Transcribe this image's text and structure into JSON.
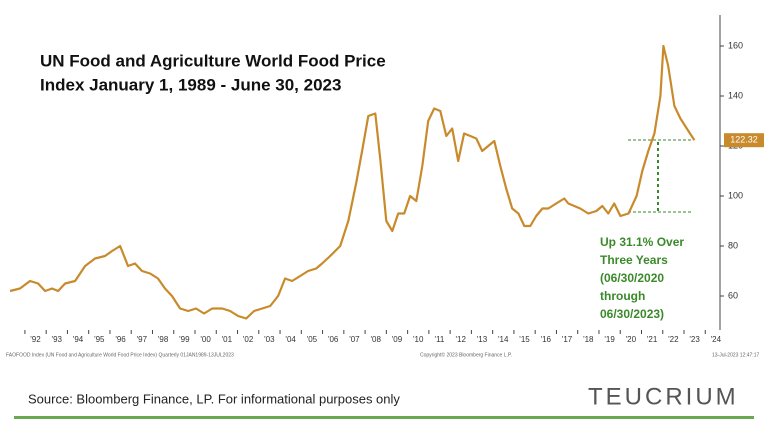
{
  "chart_data": {
    "type": "line",
    "title": [
      "UN Food and Agriculture World Food Price",
      "Index January 1, 1989 - June 30, 2023"
    ],
    "x": [
      1991.3,
      1991.77,
      1992.24,
      1992.62,
      1992.95,
      1993.28,
      1993.56,
      1993.89,
      1994.36,
      1994.83,
      1995.3,
      1995.77,
      1996.1,
      1996.48,
      1996.85,
      1997.18,
      1997.51,
      1997.89,
      1998.26,
      1998.59,
      1998.92,
      1999.3,
      1999.68,
      2000.05,
      2000.43,
      2000.81,
      2001.28,
      2001.65,
      2002.03,
      2002.41,
      2002.78,
      2003.16,
      2003.54,
      2003.91,
      2004.24,
      2004.57,
      2004.95,
      2005.32,
      2005.7,
      2005.98,
      2006.36,
      2006.83,
      2007.21,
      2007.58,
      2007.86,
      2008.15,
      2008.48,
      2008.71,
      2009.0,
      2009.28,
      2009.56,
      2009.84,
      2010.12,
      2010.41,
      2010.69,
      2010.97,
      2011.25,
      2011.54,
      2011.82,
      2012.1,
      2012.38,
      2012.66,
      2012.95,
      2013.23,
      2013.51,
      2013.79,
      2014.08,
      2014.36,
      2014.64,
      2014.92,
      2015.21,
      2015.49,
      2015.77,
      2016.05,
      2016.34,
      2016.62,
      2016.99,
      2017.37,
      2017.56,
      2017.84,
      2018.12,
      2018.5,
      2018.88,
      2019.16,
      2019.44,
      2019.72,
      2020.01,
      2020.39,
      2020.77,
      2021.04,
      2021.32,
      2021.61,
      2021.89,
      2022.03,
      2022.26,
      2022.55,
      2022.83,
      2023.21,
      2023.49
    ],
    "values": [
      62,
      63,
      66,
      65,
      62,
      63,
      62,
      65,
      66,
      72,
      75,
      76,
      78,
      80,
      72,
      73,
      70,
      69,
      67,
      63,
      60,
      55,
      54,
      55,
      53,
      55,
      55,
      54,
      52,
      51,
      54,
      55,
      56,
      60,
      67,
      66,
      68,
      70,
      71,
      73,
      76,
      80,
      90,
      105,
      118,
      132,
      133,
      115,
      90,
      86,
      93,
      93,
      100,
      98,
      112,
      130,
      135,
      134,
      124,
      127,
      114,
      125,
      124,
      123,
      118,
      120,
      122,
      112,
      103,
      95,
      93,
      88,
      88,
      92,
      95,
      95,
      97,
      99,
      97,
      96,
      95,
      93,
      94,
      96,
      93,
      97,
      92,
      93,
      100,
      110,
      118,
      125,
      140,
      160,
      152,
      136,
      131,
      126,
      122.32
    ],
    "color": "#c98a2c",
    "xlim": [
      1991.3,
      2024.6
    ],
    "ylim": [
      46.4,
      172.4
    ],
    "yticks": [
      60,
      80,
      100,
      120,
      140,
      160
    ],
    "xticks": [
      {
        "value": 1992.5,
        "label": "'92"
      },
      {
        "value": 1993.5,
        "label": "'93"
      },
      {
        "value": 1994.5,
        "label": "'94"
      },
      {
        "value": 1995.5,
        "label": "'95"
      },
      {
        "value": 1996.5,
        "label": "'96"
      },
      {
        "value": 1997.5,
        "label": "'97"
      },
      {
        "value": 1998.5,
        "label": "'98"
      },
      {
        "value": 1999.5,
        "label": "'99"
      },
      {
        "value": 2000.5,
        "label": "'00"
      },
      {
        "value": 2001.5,
        "label": "'01"
      },
      {
        "value": 2002.5,
        "label": "'02"
      },
      {
        "value": 2003.5,
        "label": "'03"
      },
      {
        "value": 2004.5,
        "label": "'04"
      },
      {
        "value": 2005.5,
        "label": "'05"
      },
      {
        "value": 2006.5,
        "label": "'06"
      },
      {
        "value": 2007.5,
        "label": "'07"
      },
      {
        "value": 2008.5,
        "label": "'08"
      },
      {
        "value": 2009.5,
        "label": "'09"
      },
      {
        "value": 2010.5,
        "label": "'10"
      },
      {
        "value": 2011.5,
        "label": "'11"
      },
      {
        "value": 2012.5,
        "label": "'12"
      },
      {
        "value": 2013.5,
        "label": "'13"
      },
      {
        "value": 2014.5,
        "label": "'14"
      },
      {
        "value": 2015.5,
        "label": "'15"
      },
      {
        "value": 2016.5,
        "label": "'16"
      },
      {
        "value": 2017.5,
        "label": "'17"
      },
      {
        "value": 2018.5,
        "label": "'18"
      },
      {
        "value": 2019.5,
        "label": "'19"
      },
      {
        "value": 2020.5,
        "label": "'20"
      },
      {
        "value": 2021.5,
        "label": "'21"
      },
      {
        "value": 2022.5,
        "label": "'22"
      },
      {
        "value": 2023.5,
        "label": "'23"
      },
      {
        "value": 2024.5,
        "label": "'24"
      }
    ],
    "annotation": [
      "Up 31.1% Over",
      "Three Years",
      "(06/30/2020",
      "through",
      "06/30/2023)"
    ],
    "footnotes": [
      "FAOFOOD Index (UN Food and Agriculture World Food Price Index) Quarterly 01JAN1989-13JUL2023",
      "Copyright© 2023 Bloomberg Finance L.P.",
      "13-Jul-2023 12:47:17"
    ],
    "source": "Source: Bloomberg Finance, LP.  For informational purposes only",
    "logo": "TEUCRIUM"
  }
}
